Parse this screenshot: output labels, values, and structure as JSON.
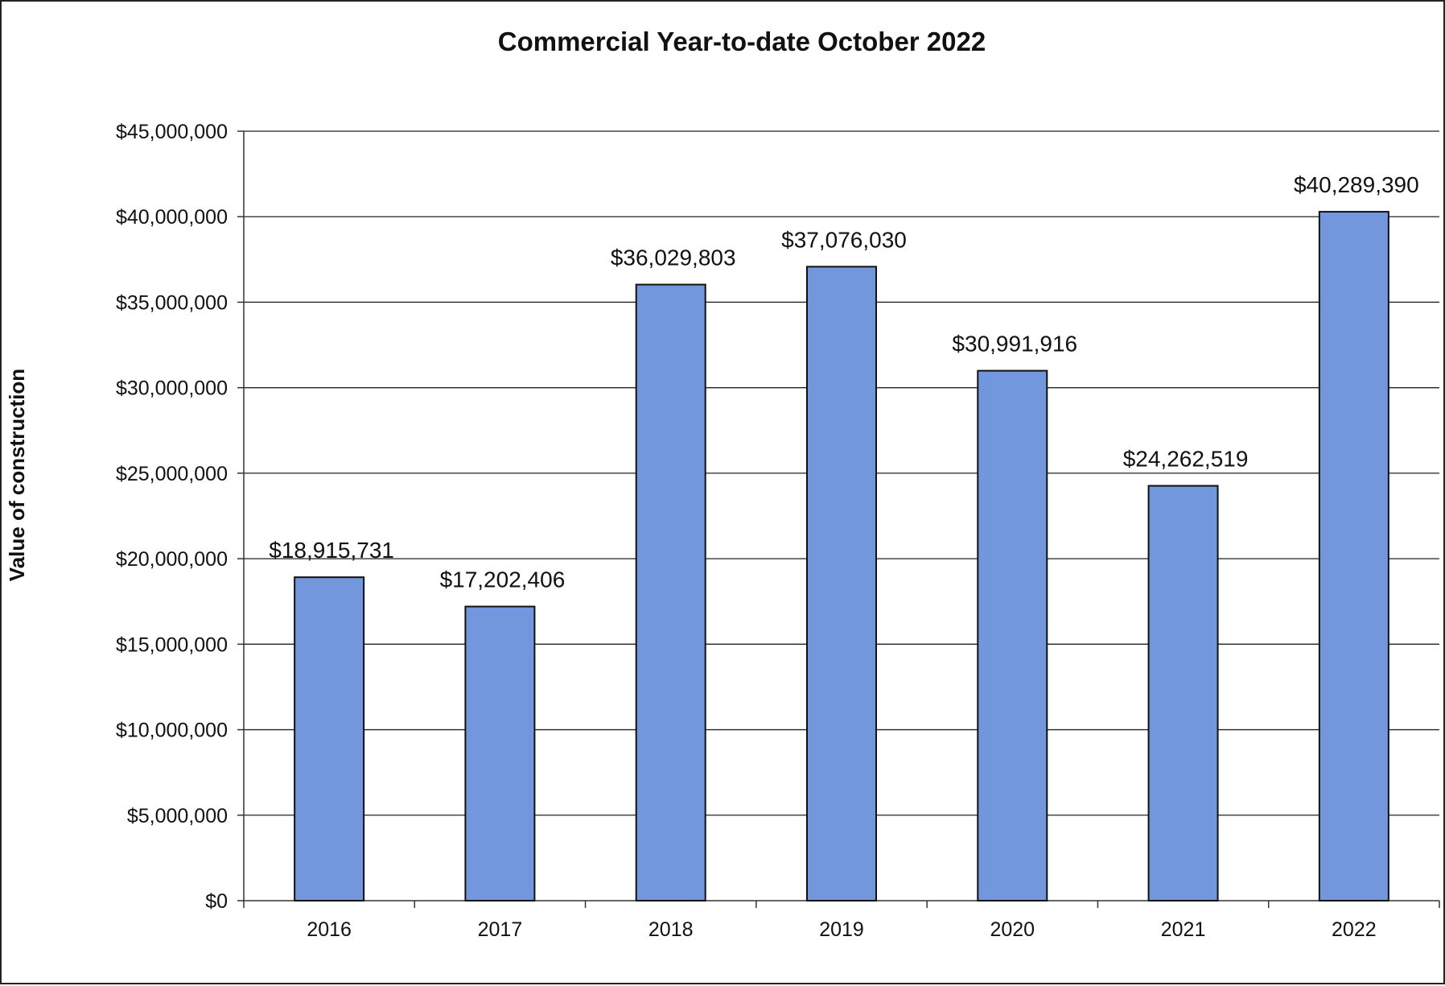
{
  "chart_data": {
    "type": "bar",
    "title": "Commercial Year-to-date October 2022",
    "xlabel": "",
    "ylabel": "Value of construction",
    "categories": [
      "2016",
      "2017",
      "2018",
      "2019",
      "2020",
      "2021",
      "2022"
    ],
    "values": [
      18915731,
      17202406,
      36029803,
      37076030,
      30991916,
      24262519,
      40289390
    ],
    "data_labels": [
      "$18,915,731",
      "$17,202,406",
      "$36,029,803",
      "$37,076,030",
      "$30,991,916",
      "$24,262,519",
      "$40,289,390"
    ],
    "ylim": [
      0,
      45000000
    ],
    "yticks": [
      0,
      5000000,
      10000000,
      15000000,
      20000000,
      25000000,
      30000000,
      35000000,
      40000000,
      45000000
    ],
    "ytick_labels": [
      "$0",
      "$5,000,000",
      "$10,000,000",
      "$15,000,000",
      "$20,000,000",
      "$25,000,000",
      "$30,000,000",
      "$35,000,000",
      "$40,000,000",
      "$45,000,000"
    ],
    "grid": true,
    "bar_color": "#7297dd"
  }
}
